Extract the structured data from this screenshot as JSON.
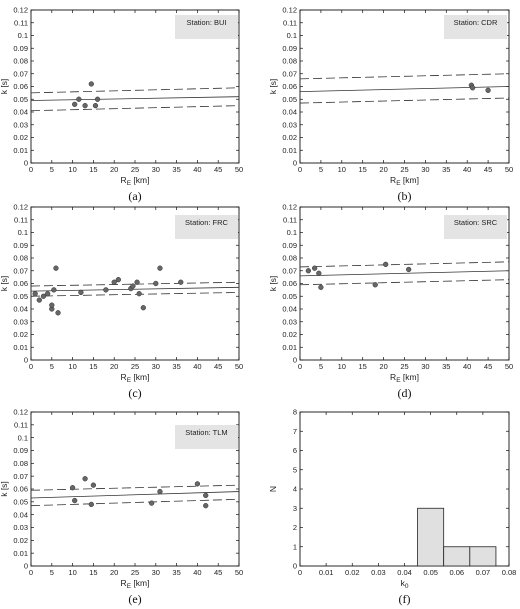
{
  "chart_data": [
    {
      "type": "scatter",
      "panel_label": "(a)",
      "station_label": "Station: BUI",
      "xlabel": "R",
      "xlabel_sub": "E",
      "xlabel_unit": " [km]",
      "ylabel": "k [s]",
      "xlim": [
        0,
        50
      ],
      "ylim": [
        0,
        0.12
      ],
      "x_ticks": [
        0,
        5,
        10,
        15,
        20,
        25,
        30,
        35,
        40,
        45,
        50
      ],
      "y_ticks": [
        0,
        0.01,
        0.02,
        0.03,
        0.04,
        0.05,
        0.06,
        0.07,
        0.08,
        0.09,
        0.1,
        0.11,
        0.12
      ],
      "points": [
        [
          10.5,
          0.046
        ],
        [
          11.5,
          0.05
        ],
        [
          13,
          0.045
        ],
        [
          14.5,
          0.062
        ],
        [
          15.5,
          0.045
        ],
        [
          16,
          0.05
        ]
      ],
      "fit_line": [
        [
          0,
          0.049
        ],
        [
          50,
          0.052
        ]
      ],
      "upper_bound": [
        [
          0,
          0.055
        ],
        [
          50,
          0.059
        ]
      ],
      "lower_bound": [
        [
          0,
          0.041
        ],
        [
          50,
          0.045
        ]
      ]
    },
    {
      "type": "scatter",
      "panel_label": "(b)",
      "station_label": "Station: CDR",
      "xlabel": "R",
      "xlabel_sub": "E",
      "xlabel_unit": " [km]",
      "ylabel": "k [s]",
      "xlim": [
        0,
        50
      ],
      "ylim": [
        0,
        0.12
      ],
      "x_ticks": [
        0,
        5,
        10,
        15,
        20,
        25,
        30,
        35,
        40,
        45,
        50
      ],
      "y_ticks": [
        0,
        0.01,
        0.02,
        0.03,
        0.04,
        0.05,
        0.06,
        0.07,
        0.08,
        0.09,
        0.1,
        0.11,
        0.12
      ],
      "points": [
        [
          41,
          0.061
        ],
        [
          41.3,
          0.059
        ],
        [
          45,
          0.057
        ]
      ],
      "fit_line": [
        [
          0,
          0.056
        ],
        [
          50,
          0.06
        ]
      ],
      "upper_bound": [
        [
          0,
          0.066
        ],
        [
          50,
          0.07
        ]
      ],
      "lower_bound": [
        [
          0,
          0.047
        ],
        [
          50,
          0.051
        ]
      ]
    },
    {
      "type": "scatter",
      "panel_label": "(c)",
      "station_label": "Station: FRC",
      "xlabel": "R",
      "xlabel_sub": "E",
      "xlabel_unit": " [km]",
      "ylabel": "k [s]",
      "xlim": [
        0,
        50
      ],
      "ylim": [
        0,
        0.12
      ],
      "x_ticks": [
        0,
        5,
        10,
        15,
        20,
        25,
        30,
        35,
        40,
        45,
        50
      ],
      "y_ticks": [
        0,
        0.01,
        0.02,
        0.03,
        0.04,
        0.05,
        0.06,
        0.07,
        0.08,
        0.09,
        0.1,
        0.11,
        0.12
      ],
      "points": [
        [
          1,
          0.052
        ],
        [
          2,
          0.047
        ],
        [
          3,
          0.05
        ],
        [
          4,
          0.052
        ],
        [
          5,
          0.04
        ],
        [
          5,
          0.043
        ],
        [
          5.5,
          0.055
        ],
        [
          6,
          0.072
        ],
        [
          6.5,
          0.037
        ],
        [
          12,
          0.053
        ],
        [
          18,
          0.055
        ],
        [
          20,
          0.061
        ],
        [
          21,
          0.063
        ],
        [
          24,
          0.056
        ],
        [
          24.5,
          0.058
        ],
        [
          25.5,
          0.061
        ],
        [
          26,
          0.052
        ],
        [
          27,
          0.041
        ],
        [
          30,
          0.06
        ],
        [
          31,
          0.072
        ],
        [
          36,
          0.061
        ]
      ],
      "fit_line": [
        [
          0,
          0.054
        ],
        [
          50,
          0.057
        ]
      ],
      "upper_bound": [
        [
          0,
          0.058
        ],
        [
          50,
          0.061
        ]
      ],
      "lower_bound": [
        [
          0,
          0.05
        ],
        [
          50,
          0.053
        ]
      ]
    },
    {
      "type": "scatter",
      "panel_label": "(d)",
      "station_label": "Station: SRC",
      "xlabel": "R",
      "xlabel_sub": "E",
      "xlabel_unit": " [km]",
      "ylabel": "k [s]",
      "xlim": [
        0,
        50
      ],
      "ylim": [
        0,
        0.12
      ],
      "x_ticks": [
        0,
        5,
        10,
        15,
        20,
        25,
        30,
        35,
        40,
        45,
        50
      ],
      "y_ticks": [
        0,
        0.01,
        0.02,
        0.03,
        0.04,
        0.05,
        0.06,
        0.07,
        0.08,
        0.09,
        0.1,
        0.11,
        0.12
      ],
      "points": [
        [
          2,
          0.07
        ],
        [
          3.5,
          0.072
        ],
        [
          4.5,
          0.068
        ],
        [
          5,
          0.057
        ],
        [
          18,
          0.059
        ],
        [
          20.5,
          0.075
        ],
        [
          26,
          0.071
        ]
      ],
      "fit_line": [
        [
          0,
          0.066
        ],
        [
          50,
          0.07
        ]
      ],
      "upper_bound": [
        [
          0,
          0.073
        ],
        [
          50,
          0.077
        ]
      ],
      "lower_bound": [
        [
          0,
          0.059
        ],
        [
          50,
          0.063
        ]
      ]
    },
    {
      "type": "scatter",
      "panel_label": "(e)",
      "station_label": "Station: TLM",
      "xlabel": "R",
      "xlabel_sub": "E",
      "xlabel_unit": " [km]",
      "ylabel": "k [s]",
      "xlim": [
        0,
        50
      ],
      "ylim": [
        0,
        0.12
      ],
      "x_ticks": [
        0,
        5,
        10,
        15,
        20,
        25,
        30,
        35,
        40,
        45,
        50
      ],
      "y_ticks": [
        0,
        0.01,
        0.02,
        0.03,
        0.04,
        0.05,
        0.06,
        0.07,
        0.08,
        0.09,
        0.1,
        0.11,
        0.12
      ],
      "points": [
        [
          10,
          0.061
        ],
        [
          10.5,
          0.051
        ],
        [
          13,
          0.068
        ],
        [
          14.5,
          0.048
        ],
        [
          15,
          0.063
        ],
        [
          29,
          0.049
        ],
        [
          31,
          0.058
        ],
        [
          40,
          0.064
        ],
        [
          42,
          0.055
        ],
        [
          42,
          0.047
        ]
      ],
      "fit_line": [
        [
          0,
          0.053
        ],
        [
          50,
          0.058
        ]
      ],
      "upper_bound": [
        [
          0,
          0.059
        ],
        [
          50,
          0.063
        ]
      ],
      "lower_bound": [
        [
          0,
          0.047
        ],
        [
          50,
          0.052
        ]
      ]
    },
    {
      "type": "bar",
      "panel_label": "(f)",
      "xlabel": "k",
      "xlabel_sub": "0",
      "ylabel": "N",
      "xlim": [
        0,
        0.08
      ],
      "ylim": [
        0,
        8
      ],
      "x_ticks": [
        0,
        0.01,
        0.02,
        0.03,
        0.04,
        0.05,
        0.06,
        0.07,
        0.08
      ],
      "y_ticks": [
        0,
        1,
        2,
        3,
        4,
        5,
        6,
        7,
        8
      ],
      "bins": [
        [
          0.045,
          0.055
        ],
        [
          0.055,
          0.065
        ],
        [
          0.065,
          0.075
        ]
      ],
      "values": [
        3,
        1,
        1
      ]
    }
  ]
}
